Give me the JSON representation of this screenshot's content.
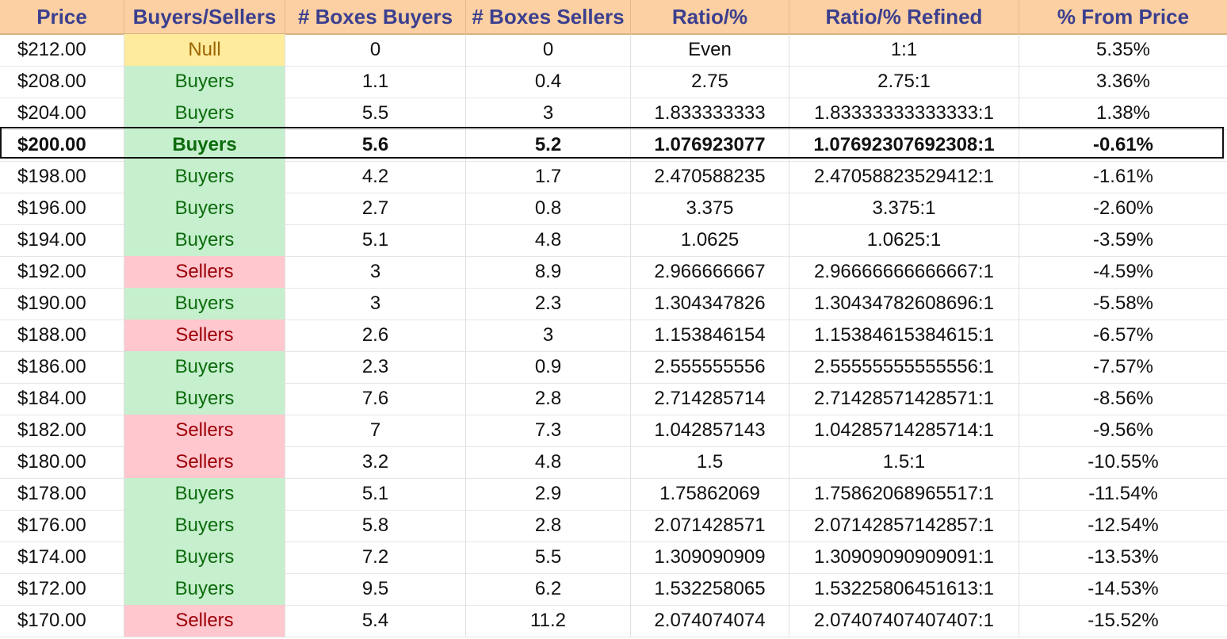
{
  "headers": [
    "Price",
    "Buyers/Sellers",
    "# Boxes Buyers",
    "# Boxes Sellers",
    "Ratio/%",
    "Ratio/% Refined",
    "% From Price"
  ],
  "colors": {
    "header_bg": "#fcd0a2",
    "header_text": "#3b3f8f",
    "buyers_bg": "#c6efce",
    "buyers_text": "#0b6b0b",
    "sellers_bg": "#ffc7ce",
    "sellers_text": "#9c0006",
    "null_bg": "#ffeb9c",
    "null_text": "#9c6500"
  },
  "highlighted_row": 3,
  "rows": [
    {
      "price": "$212.00",
      "side": "Null",
      "buyers": "0",
      "sellers": "0",
      "ratio": "Even",
      "refined": "1:1",
      "pct": "5.35%"
    },
    {
      "price": "$208.00",
      "side": "Buyers",
      "buyers": "1.1",
      "sellers": "0.4",
      "ratio": "2.75",
      "refined": "2.75:1",
      "pct": "3.36%"
    },
    {
      "price": "$204.00",
      "side": "Buyers",
      "buyers": "5.5",
      "sellers": "3",
      "ratio": "1.833333333",
      "refined": "1.83333333333333:1",
      "pct": "1.38%"
    },
    {
      "price": "$200.00",
      "side": "Buyers",
      "buyers": "5.6",
      "sellers": "5.2",
      "ratio": "1.076923077",
      "refined": "1.07692307692308:1",
      "pct": "-0.61%"
    },
    {
      "price": "$198.00",
      "side": "Buyers",
      "buyers": "4.2",
      "sellers": "1.7",
      "ratio": "2.470588235",
      "refined": "2.47058823529412:1",
      "pct": "-1.61%"
    },
    {
      "price": "$196.00",
      "side": "Buyers",
      "buyers": "2.7",
      "sellers": "0.8",
      "ratio": "3.375",
      "refined": "3.375:1",
      "pct": "-2.60%"
    },
    {
      "price": "$194.00",
      "side": "Buyers",
      "buyers": "5.1",
      "sellers": "4.8",
      "ratio": "1.0625",
      "refined": "1.0625:1",
      "pct": "-3.59%"
    },
    {
      "price": "$192.00",
      "side": "Sellers",
      "buyers": "3",
      "sellers": "8.9",
      "ratio": "2.966666667",
      "refined": "2.96666666666667:1",
      "pct": "-4.59%"
    },
    {
      "price": "$190.00",
      "side": "Buyers",
      "buyers": "3",
      "sellers": "2.3",
      "ratio": "1.304347826",
      "refined": "1.30434782608696:1",
      "pct": "-5.58%"
    },
    {
      "price": "$188.00",
      "side": "Sellers",
      "buyers": "2.6",
      "sellers": "3",
      "ratio": "1.153846154",
      "refined": "1.15384615384615:1",
      "pct": "-6.57%"
    },
    {
      "price": "$186.00",
      "side": "Buyers",
      "buyers": "2.3",
      "sellers": "0.9",
      "ratio": "2.555555556",
      "refined": "2.55555555555556:1",
      "pct": "-7.57%"
    },
    {
      "price": "$184.00",
      "side": "Buyers",
      "buyers": "7.6",
      "sellers": "2.8",
      "ratio": "2.714285714",
      "refined": "2.71428571428571:1",
      "pct": "-8.56%"
    },
    {
      "price": "$182.00",
      "side": "Sellers",
      "buyers": "7",
      "sellers": "7.3",
      "ratio": "1.042857143",
      "refined": "1.04285714285714:1",
      "pct": "-9.56%"
    },
    {
      "price": "$180.00",
      "side": "Sellers",
      "buyers": "3.2",
      "sellers": "4.8",
      "ratio": "1.5",
      "refined": "1.5:1",
      "pct": "-10.55%"
    },
    {
      "price": "$178.00",
      "side": "Buyers",
      "buyers": "5.1",
      "sellers": "2.9",
      "ratio": "1.75862069",
      "refined": "1.75862068965517:1",
      "pct": "-11.54%"
    },
    {
      "price": "$176.00",
      "side": "Buyers",
      "buyers": "5.8",
      "sellers": "2.8",
      "ratio": "2.071428571",
      "refined": "2.07142857142857:1",
      "pct": "-12.54%"
    },
    {
      "price": "$174.00",
      "side": "Buyers",
      "buyers": "7.2",
      "sellers": "5.5",
      "ratio": "1.309090909",
      "refined": "1.30909090909091:1",
      "pct": "-13.53%"
    },
    {
      "price": "$172.00",
      "side": "Buyers",
      "buyers": "9.5",
      "sellers": "6.2",
      "ratio": "1.532258065",
      "refined": "1.53225806451613:1",
      "pct": "-14.53%"
    },
    {
      "price": "$170.00",
      "side": "Sellers",
      "buyers": "5.4",
      "sellers": "11.2",
      "ratio": "2.074074074",
      "refined": "2.07407407407407:1",
      "pct": "-15.52%"
    }
  ]
}
